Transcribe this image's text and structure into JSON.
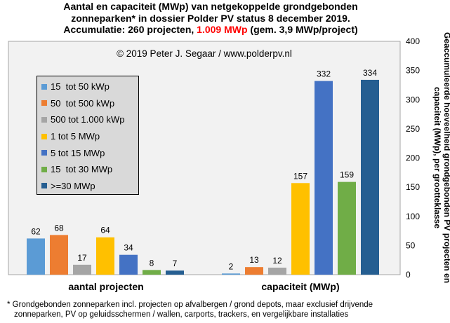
{
  "title": {
    "line1": "Aantal en capaciteit (MWp) van netgekoppelde grondgebonden",
    "line2": "zonneparken* in dossier Polder PV status 8 december 2019.",
    "line3_a": "Accumulatie: 260 projecten, ",
    "line3_red": "1.009 MWp",
    "line3_b": " (gem. 3,9 MWp/project)"
  },
  "copyright": "© 2019 Peter J. Segaar / www.polderpv.nl",
  "ylabel": "Geaccumuleerde hoeveelheid grondgebonden PV projecten en capaciteit (MWp), per grootteklasse",
  "footnote": {
    "line1": "* Grondgebonden zonneparken incl. projecten op afvalbergen / grond depots, maar exclusief drijvende",
    "line2": "zonneparken, PV op geluidsschermen / wallen, carports, trackers, en vergelijkbare installaties"
  },
  "colors": {
    "plot_bg": "#f2f2f2",
    "legend_bg": "#d9d9d9",
    "red": "#ff0000"
  },
  "chart_data": {
    "type": "bar",
    "categories": [
      "aantal projecten",
      "capaciteit (MWp)"
    ],
    "ylim": [
      0,
      400
    ],
    "yticks": [
      0,
      50,
      100,
      150,
      200,
      250,
      300,
      350,
      400
    ],
    "y_axis_side": "right",
    "legend_placement": "top-left",
    "grid": false,
    "series": [
      {
        "name": "15  tot 50 kWp",
        "color": "#5b9bd5",
        "values": [
          62,
          2
        ]
      },
      {
        "name": "50  tot 500 kWp",
        "color": "#ed7d31",
        "values": [
          68,
          13
        ]
      },
      {
        "name": "500 tot 1.000 kWp",
        "color": "#a5a5a5",
        "values": [
          17,
          12
        ]
      },
      {
        "name": "1 tot 5 MWp",
        "color": "#ffc000",
        "values": [
          64,
          157
        ]
      },
      {
        "name": "5 tot 15 MWp",
        "color": "#4472c4",
        "values": [
          34,
          332
        ]
      },
      {
        "name": "15  tot 30 MWp",
        "color": "#70ad47",
        "values": [
          8,
          159
        ]
      },
      {
        "name": ">=30 MWp",
        "color": "#255e91",
        "values": [
          7,
          334
        ]
      }
    ]
  }
}
